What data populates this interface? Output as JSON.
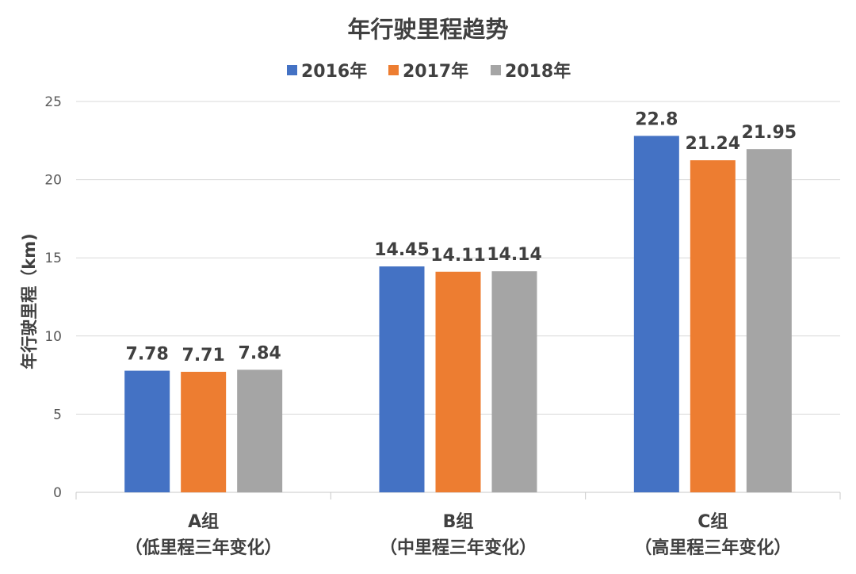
{
  "chart_data": {
    "type": "bar",
    "title": "年行驶里程趋势",
    "ylabel": "年行驶里程（km)",
    "xlabel": "",
    "ylim": [
      0,
      25
    ],
    "yticks": [
      0,
      5,
      10,
      15,
      20,
      25
    ],
    "grid": true,
    "legend_position": "top",
    "categories": [
      {
        "line1": "A组",
        "line2": "（低里程三年变化）"
      },
      {
        "line1": "B组",
        "line2": "（中里程三年变化）"
      },
      {
        "line1": "C组",
        "line2": "（高里程三年变化）"
      }
    ],
    "series": [
      {
        "name": "2016年",
        "color": "#4472c4",
        "values": [
          7.78,
          14.45,
          22.8
        ]
      },
      {
        "name": "2017年",
        "color": "#ed7d31",
        "values": [
          7.71,
          14.11,
          21.24
        ]
      },
      {
        "name": "2018年",
        "color": "#a5a5a5",
        "values": [
          7.84,
          14.14,
          21.95
        ]
      }
    ],
    "data_labels": [
      [
        "7.78",
        "14.45",
        "22.8"
      ],
      [
        "7.71",
        "14.11",
        "21.24"
      ],
      [
        "7.84",
        "14.14",
        "21.95"
      ]
    ]
  }
}
